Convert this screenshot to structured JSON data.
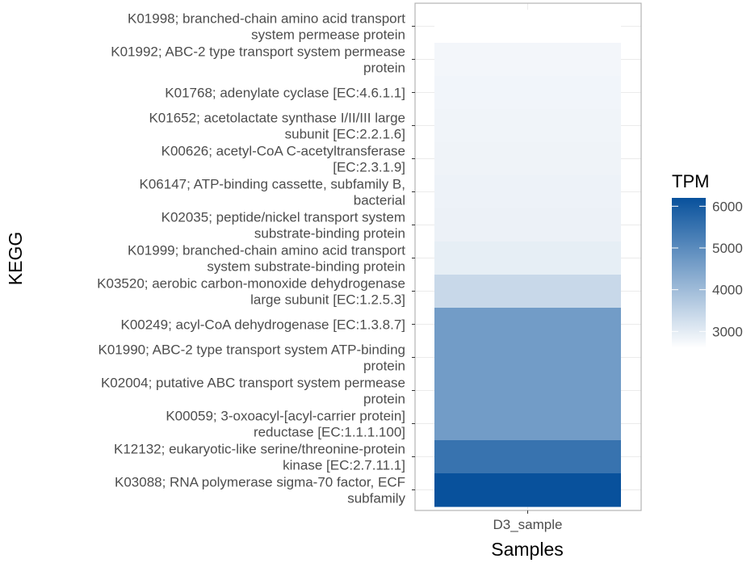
{
  "chart_data": {
    "type": "heatmap",
    "title": "",
    "xlabel": "Samples",
    "ylabel": "KEGG",
    "x_categories": [
      "D3_sample"
    ],
    "rows": [
      {
        "label": [
          "K01998; branched-chain amino acid transport",
          "system permease protein"
        ],
        "value": 2600
      },
      {
        "label": [
          "K01992; ABC-2 type transport system permease",
          "protein"
        ],
        "value": 2780
      },
      {
        "label": [
          "K01768; adenylate cyclase [EC:4.6.1.1]"
        ],
        "value": 2800
      },
      {
        "label": [
          "K01652; acetolactate synthase I/II/III large",
          "subunit [EC:2.2.1.6]"
        ],
        "value": 2820
      },
      {
        "label": [
          "K00626; acetyl-CoA C-acetyltransferase",
          "[EC:2.3.1.9]"
        ],
        "value": 2840
      },
      {
        "label": [
          "K06147; ATP-binding cassette, subfamily B,",
          "bacterial"
        ],
        "value": 2860
      },
      {
        "label": [
          "K02035; peptide/nickel transport system",
          "substrate-binding protein"
        ],
        "value": 2880
      },
      {
        "label": [
          "K01999; branched-chain amino acid transport",
          "system substrate-binding protein"
        ],
        "value": 2960
      },
      {
        "label": [
          "K03520; aerobic carbon-monoxide dehydrogenase",
          "large subunit [EC:1.2.5.3]"
        ],
        "value": 3400
      },
      {
        "label": [
          "K00249; acyl-CoA dehydrogenase [EC:1.3.8.7]"
        ],
        "value": 4650
      },
      {
        "label": [
          "K01990; ABC-2 type transport system ATP-binding",
          "protein"
        ],
        "value": 4650
      },
      {
        "label": [
          "K02004; putative ABC transport system permease",
          "protein"
        ],
        "value": 4650
      },
      {
        "label": [
          "K00059; 3-oxoacyl-[acyl-carrier protein]",
          "reductase [EC:1.1.1.100]"
        ],
        "value": 4650
      },
      {
        "label": [
          "K12132; eukaryotic-like serine/threonine-protein",
          "kinase [EC:2.7.11.1]"
        ],
        "value": 5500
      },
      {
        "label": [
          "K03088; RNA polymerase sigma-70 factor, ECF",
          "subfamily"
        ],
        "value": 6200
      }
    ],
    "legend": {
      "title": "TPM",
      "ticks": [
        3000,
        4000,
        5000,
        6000
      ],
      "range": [
        2600,
        6200
      ],
      "low_color": "#ffffff",
      "high_color": "#08519c",
      "placement": "right"
    },
    "grid": true
  }
}
